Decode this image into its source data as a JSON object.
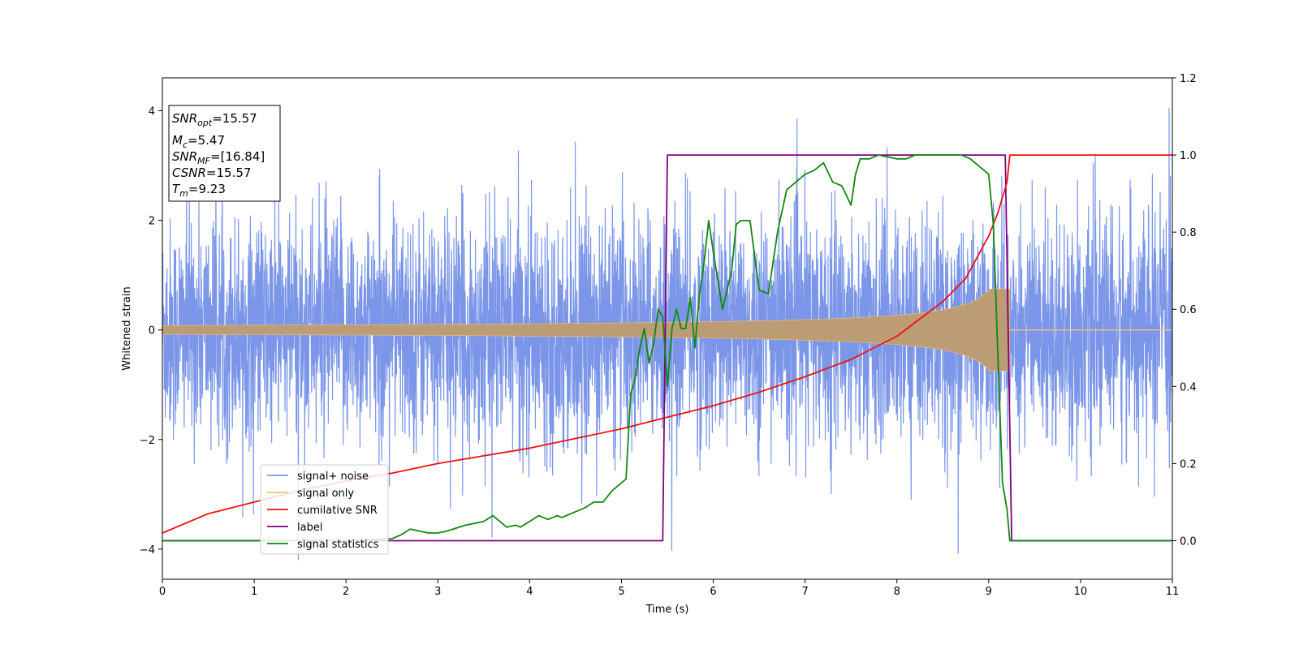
{
  "chart_data": {
    "type": "line",
    "xlabel": "Time (s)",
    "ylabel": "Whitened strain",
    "xlim": [
      0,
      11
    ],
    "ylim_left": [
      -4.55,
      4.6
    ],
    "ylim_right": [
      -0.1,
      1.2
    ],
    "x_ticks": [
      0,
      1,
      2,
      3,
      4,
      5,
      6,
      7,
      8,
      9,
      10,
      11
    ],
    "y_ticks_left": [
      -4,
      -2,
      0,
      2,
      4
    ],
    "y_ticks_right": [
      0.0,
      0.2,
      0.4,
      0.6,
      0.8,
      1.0,
      1.2
    ],
    "x_tick_labels": [
      "0",
      "1",
      "2",
      "3",
      "4",
      "5",
      "6",
      "7",
      "8",
      "9",
      "10",
      "11"
    ],
    "y_tick_labels_left": [
      "−4",
      "−2",
      "0",
      "2",
      "4"
    ],
    "y_tick_labels_right": [
      "0.0",
      "0.2",
      "0.4",
      "0.6",
      "0.8",
      "1.0",
      "1.2"
    ],
    "grid": false,
    "legend_position": "lower-left",
    "info_box": {
      "snr_opt": "15.57",
      "mc": "5.47",
      "snr_mf": "[16.84]",
      "csnr": "15.57",
      "tm": "9.23"
    },
    "series": [
      {
        "name": "signal+ noise",
        "axis": "left",
        "color": "#7b96e8",
        "kind": "noise",
        "amplitude_std": 1.4,
        "x_range": [
          0,
          11
        ]
      },
      {
        "name": "signal only",
        "axis": "left",
        "color": "#f5c27a",
        "fill_color": "#bb9c74",
        "kind": "chirp",
        "merger_time": 9.23,
        "amplitude_start": 0.08,
        "amplitude_peak": 0.75,
        "x_range": [
          0,
          11
        ]
      },
      {
        "name": "cumilative SNR",
        "axis": "right",
        "color": "#ee1111",
        "x": [
          0,
          0.5,
          1,
          1.5,
          2,
          2.5,
          3,
          3.5,
          4,
          4.5,
          5,
          5.5,
          6,
          6.5,
          7,
          7.5,
          8,
          8.5,
          8.75,
          9,
          9.1,
          9.2,
          9.23,
          11
        ],
        "y": [
          0.02,
          0.07,
          0.1,
          0.13,
          0.155,
          0.175,
          0.2,
          0.22,
          0.24,
          0.265,
          0.29,
          0.32,
          0.35,
          0.385,
          0.425,
          0.47,
          0.53,
          0.62,
          0.68,
          0.79,
          0.85,
          0.93,
          1.0,
          1.0
        ]
      },
      {
        "name": "label",
        "axis": "right",
        "color": "#800080",
        "x": [
          0,
          5.45,
          5.5,
          9.18,
          9.25,
          11
        ],
        "y": [
          0,
          0,
          1,
          1,
          0,
          0
        ]
      },
      {
        "name": "signal statistics",
        "axis": "right",
        "color": "#118811",
        "x": [
          0,
          0.5,
          1,
          1.5,
          2,
          2.5,
          2.6,
          2.7,
          2.9,
          3.0,
          3.1,
          3.3,
          3.4,
          3.5,
          3.6,
          3.75,
          3.85,
          3.9,
          4.0,
          4.1,
          4.2,
          4.3,
          4.35,
          4.5,
          4.6,
          4.7,
          4.8,
          4.9,
          5.0,
          5.05,
          5.1,
          5.15,
          5.2,
          5.25,
          5.3,
          5.35,
          5.4,
          5.45,
          5.5,
          5.55,
          5.6,
          5.65,
          5.7,
          5.75,
          5.8,
          5.85,
          5.9,
          5.95,
          6.0,
          6.1,
          6.2,
          6.25,
          6.3,
          6.4,
          6.5,
          6.6,
          6.7,
          6.8,
          6.9,
          7.0,
          7.1,
          7.2,
          7.3,
          7.4,
          7.5,
          7.55,
          7.6,
          7.7,
          7.8,
          8.0,
          8.1,
          8.2,
          8.3,
          8.5,
          8.7,
          8.8,
          8.9,
          9.0,
          9.05,
          9.1,
          9.15,
          9.2,
          9.23,
          9.3,
          11
        ],
        "y": [
          0,
          0,
          0,
          0,
          0.001,
          0.005,
          0.015,
          0.03,
          0.02,
          0.02,
          0.025,
          0.04,
          0.045,
          0.05,
          0.065,
          0.035,
          0.04,
          0.035,
          0.05,
          0.065,
          0.055,
          0.065,
          0.06,
          0.075,
          0.085,
          0.1,
          0.1,
          0.13,
          0.15,
          0.16,
          0.38,
          0.42,
          0.5,
          0.55,
          0.46,
          0.51,
          0.6,
          0.58,
          0.4,
          0.55,
          0.6,
          0.55,
          0.55,
          0.63,
          0.5,
          0.64,
          0.72,
          0.83,
          0.75,
          0.6,
          0.7,
          0.82,
          0.83,
          0.83,
          0.65,
          0.64,
          0.8,
          0.91,
          0.93,
          0.95,
          0.96,
          0.98,
          0.93,
          0.92,
          0.87,
          0.95,
          0.99,
          0.99,
          1.0,
          0.99,
          0.99,
          1.0,
          1.0,
          1.0,
          1.0,
          0.99,
          0.97,
          0.95,
          0.82,
          0.48,
          0.15,
          0.08,
          0.0,
          0.0,
          0.0
        ]
      }
    ]
  }
}
